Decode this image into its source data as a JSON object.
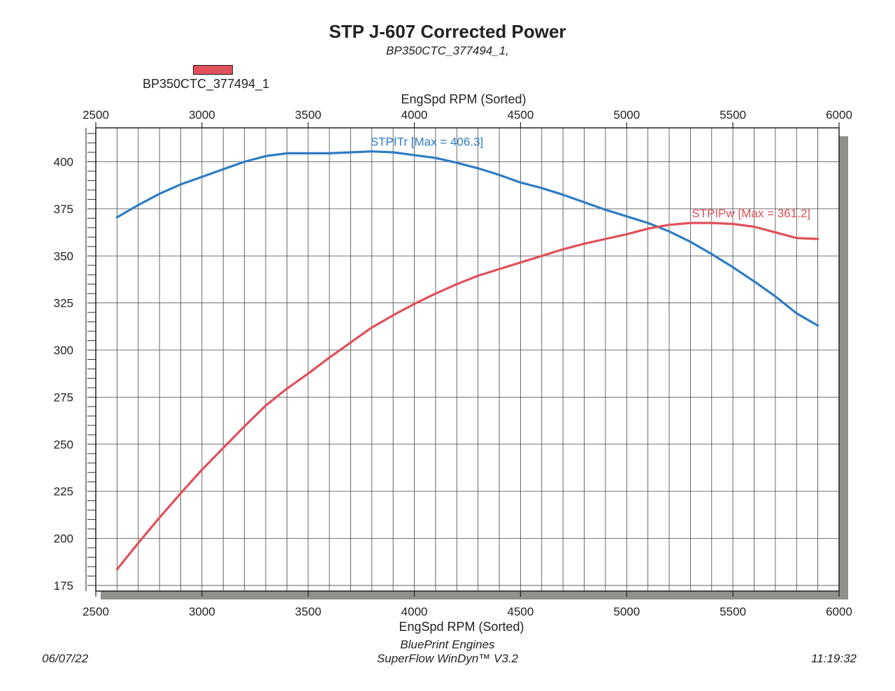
{
  "chart_data": {
    "type": "line",
    "title": "STP J-607 Corrected Power",
    "subtitle": "BP350CTC_377494_1,",
    "legend": {
      "entries": [
        "BP350CTC_377494_1"
      ],
      "placement": "top-left"
    },
    "xlabel_top": "EngSpd RPM    (Sorted)",
    "xlabel_bottom": "EngSpd RPM    (Sorted)",
    "xlim": [
      2500,
      6000
    ],
    "ylim": [
      172,
      418
    ],
    "xticks": [
      "2500",
      "3000",
      "3500",
      "4000",
      "4500",
      "5000",
      "5500",
      "6000"
    ],
    "yticks": [
      "175",
      "200",
      "225",
      "250",
      "275",
      "300",
      "325",
      "350",
      "375",
      "400"
    ],
    "grid": true,
    "series": [
      {
        "name": "STPITr",
        "annotation": "STPITr [Max = 406.3]",
        "color": "#2e7cc4",
        "x": [
          2600,
          2700,
          2800,
          2900,
          3000,
          3100,
          3200,
          3300,
          3400,
          3500,
          3600,
          3700,
          3800,
          3900,
          4000,
          4100,
          4200,
          4300,
          4400,
          4500,
          4600,
          4700,
          4800,
          4900,
          5000,
          5100,
          5200,
          5300,
          5400,
          5500,
          5600,
          5700,
          5800,
          5900
        ],
        "y": [
          370.5,
          377,
          383,
          388,
          392,
          396,
          400,
          403,
          404.5,
          404.5,
          404.5,
          405,
          405.5,
          405,
          403.5,
          402,
          399.5,
          396.5,
          393,
          389,
          386,
          382.5,
          378.5,
          374.5,
          371,
          367.5,
          363,
          357.5,
          351,
          344,
          336.5,
          328.5,
          319.5,
          313
        ]
      },
      {
        "name": "STPIPw",
        "annotation": "STPIPw [Max = 361.2]",
        "color": "#e0505a",
        "x": [
          2600,
          2700,
          2800,
          2900,
          3000,
          3100,
          3200,
          3300,
          3400,
          3500,
          3600,
          3700,
          3800,
          3900,
          4000,
          4100,
          4200,
          4300,
          4400,
          4500,
          4600,
          4700,
          4800,
          4900,
          5000,
          5100,
          5200,
          5300,
          5400,
          5500,
          5600,
          5700,
          5800,
          5900
        ],
        "y": [
          183.5,
          197.5,
          211,
          224,
          236.5,
          248,
          259.5,
          270.5,
          279.5,
          287.5,
          296,
          304,
          312,
          318.5,
          324.5,
          330,
          335,
          339.5,
          343,
          346.5,
          350,
          353.5,
          356.5,
          359,
          361.5,
          364.5,
          366.5,
          367.5,
          367.5,
          367,
          365.5,
          362.5,
          359.5,
          359
        ]
      }
    ]
  },
  "footer": {
    "date": "06/07/22",
    "time": "11:19:32",
    "line1": "BluePrint Engines",
    "line2": "SuperFlow WinDyn™ V3.2"
  }
}
